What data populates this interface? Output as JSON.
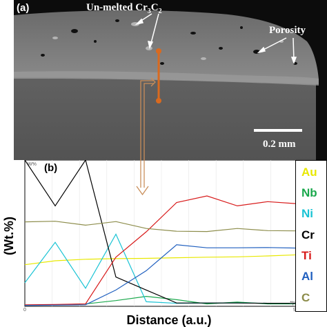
{
  "panel_a": {
    "label": "(a)",
    "annotation_unmelted_prefix": "Un-melted Cr",
    "annotation_unmelted_sub1": "3",
    "annotation_unmelted_mid": "C",
    "annotation_unmelted_sub2": "2",
    "annotation_porosity": "Porosity",
    "scale_bar_label": "0.2 mm",
    "colors": {
      "background": "#0c0c0c",
      "coating": "#808080",
      "interface": "#8e8e8e",
      "substrate": "#5c5c5c",
      "linescan": "#d96a1f",
      "arrow": "#c98e5a"
    }
  },
  "panel_b": {
    "label": "(b)",
    "corner_left": "W%",
    "corner_right": "#pt",
    "tick_x_start": "0",
    "tick_x_end": "90"
  },
  "legend": [
    {
      "label": "Au",
      "color": "#e8e800"
    },
    {
      "label": "Nb",
      "color": "#1aa84c"
    },
    {
      "label": "Ni",
      "color": "#19c3d4"
    },
    {
      "label": "Cr",
      "color": "#000000"
    },
    {
      "label": "Ti",
      "color": "#d81a1a"
    },
    {
      "label": "Al",
      "color": "#1f5fbf"
    },
    {
      "label": "C",
      "color": "#8c8c4a"
    }
  ],
  "chart_data": {
    "type": "line",
    "xlabel": "Distance (a.u.)",
    "ylabel": "(Wt.%)",
    "xlim": [
      0,
      90
    ],
    "x": [
      0,
      10,
      20,
      30,
      40,
      50,
      60,
      70,
      80,
      90
    ],
    "series": [
      {
        "name": "Au",
        "color": "#e8e800",
        "values": [
          13.8,
          15.1,
          15.6,
          15.8,
          15.9,
          16.1,
          16.3,
          16.4,
          16.7,
          17.1
        ]
      },
      {
        "name": "Nb",
        "color": "#1aa84c",
        "values": [
          0.4,
          0.5,
          0.8,
          1.9,
          3.3,
          2.2,
          0.8,
          1.4,
          0.8,
          0.8
        ]
      },
      {
        "name": "Ni",
        "color": "#19c3d4",
        "values": [
          7.8,
          21.2,
          6.0,
          23.9,
          1.5,
          1.0,
          1.1,
          1.1,
          1.0,
          1.0
        ]
      },
      {
        "name": "Cr",
        "color": "#000000",
        "values": [
          48.5,
          33.3,
          48.5,
          9.7,
          5.4,
          1.1,
          1.1,
          1.1,
          1.0,
          1.0
        ]
      },
      {
        "name": "Ti",
        "color": "#d81a1a",
        "values": [
          0.5,
          0.6,
          0.8,
          16.3,
          24.7,
          34.4,
          36.6,
          33.3,
          34.7,
          34.0
        ]
      },
      {
        "name": "Al",
        "color": "#1f5fbf",
        "values": [
          0.3,
          0.4,
          0.5,
          5.4,
          11.8,
          20.4,
          19.4,
          19.4,
          19.5,
          19.3
        ]
      },
      {
        "name": "C",
        "color": "#8c8c4a",
        "values": [
          28.0,
          28.2,
          26.9,
          28.1,
          25.8,
          24.9,
          24.8,
          25.8,
          25.1,
          25.0
        ]
      }
    ]
  }
}
